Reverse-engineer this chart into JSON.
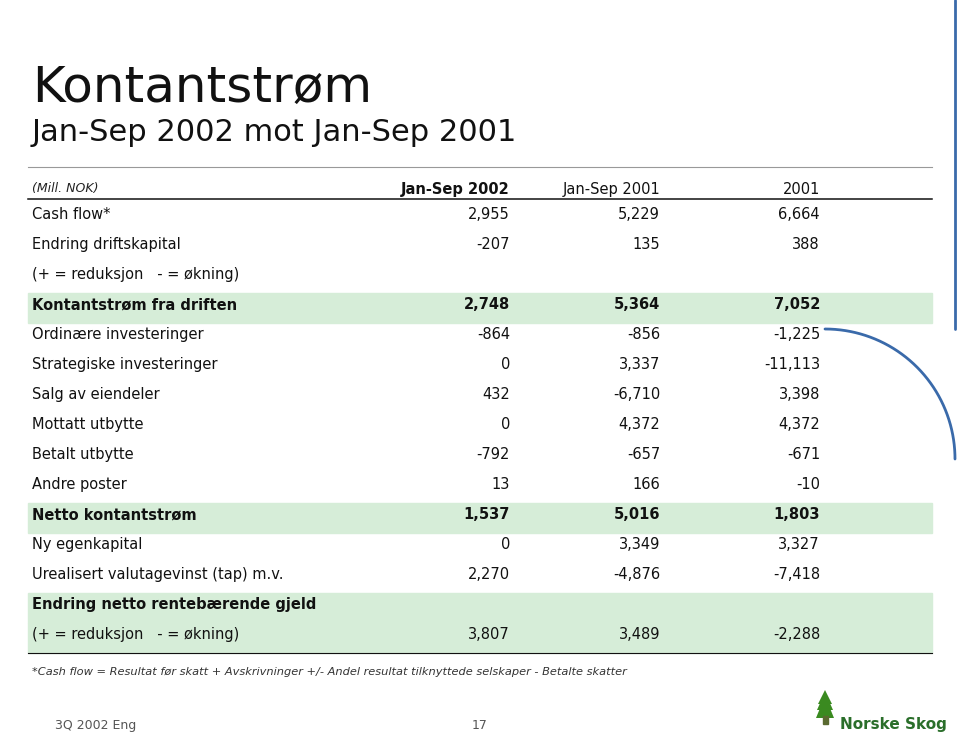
{
  "title_line1": "Kontantstrøm",
  "title_line2": "Jan-Sep 2002 mot Jan-Sep 2001",
  "col_headers": [
    "(Mill. NOK)",
    "Jan-Sep 2002",
    "Jan-Sep 2001",
    "2001"
  ],
  "rows": [
    {
      "label": "Cash flow*",
      "v1": "2,955",
      "v2": "5,229",
      "v3": "6,664",
      "bold": false,
      "highlight": false
    },
    {
      "label": "Endring driftskapital",
      "v1": "-207",
      "v2": "135",
      "v3": "388",
      "bold": false,
      "highlight": false
    },
    {
      "label": "(+ = reduksjon   - = økning)",
      "v1": "",
      "v2": "",
      "v3": "",
      "bold": false,
      "highlight": false
    },
    {
      "label": "Kontantstrøm fra driften",
      "v1": "2,748",
      "v2": "5,364",
      "v3": "7,052",
      "bold": true,
      "highlight": true
    },
    {
      "label": "Ordinære investeringer",
      "v1": "-864",
      "v2": "-856",
      "v3": "-1,225",
      "bold": false,
      "highlight": false
    },
    {
      "label": "Strategiske investeringer",
      "v1": "0",
      "v2": "3,337",
      "v3": "-11,113",
      "bold": false,
      "highlight": false
    },
    {
      "label": "Salg av eiendeler",
      "v1": "432",
      "v2": "-6,710",
      "v3": "3,398",
      "bold": false,
      "highlight": false
    },
    {
      "label": "Mottatt utbytte",
      "v1": "0",
      "v2": "4,372",
      "v3": "4,372",
      "bold": false,
      "highlight": false
    },
    {
      "label": "Betalt utbytte",
      "v1": "-792",
      "v2": "-657",
      "v3": "-671",
      "bold": false,
      "highlight": false
    },
    {
      "label": "Andre poster",
      "v1": "13",
      "v2": "166",
      "v3": "-10",
      "bold": false,
      "highlight": false
    },
    {
      "label": "Netto kontantstrøm",
      "v1": "1,537",
      "v2": "5,016",
      "v3": "1,803",
      "bold": true,
      "highlight": true
    },
    {
      "label": "Ny egenkapital",
      "v1": "0",
      "v2": "3,349",
      "v3": "3,327",
      "bold": false,
      "highlight": false
    },
    {
      "label": "Urealisert valutagevinst (tap) m.v.",
      "v1": "2,270",
      "v2": "-4,876",
      "v3": "-7,418",
      "bold": false,
      "highlight": false
    },
    {
      "label": "Endring netto rentebærende gjeld",
      "v1": "",
      "v2": "",
      "v3": "",
      "bold": true,
      "highlight": true
    },
    {
      "label": "(+ = reduksjon   - = økning)",
      "v1": "3,807",
      "v2": "3,489",
      "v3": "-2,288",
      "bold": false,
      "highlight": true
    }
  ],
  "footnote": "*Cash flow = Resultat før skatt + Avskrivninger +/- Andel resultat tilknyttede selskaper - Betalte skatter",
  "footer_left": "3Q 2002 Eng",
  "footer_center": "17",
  "bg_color": "#ffffff",
  "highlight_color": "#d6edd8",
  "title_color": "#111111",
  "accent_color": "#3a6aaa",
  "logo_text": "Norske Skog",
  "logo_color": "#2a6e2a"
}
